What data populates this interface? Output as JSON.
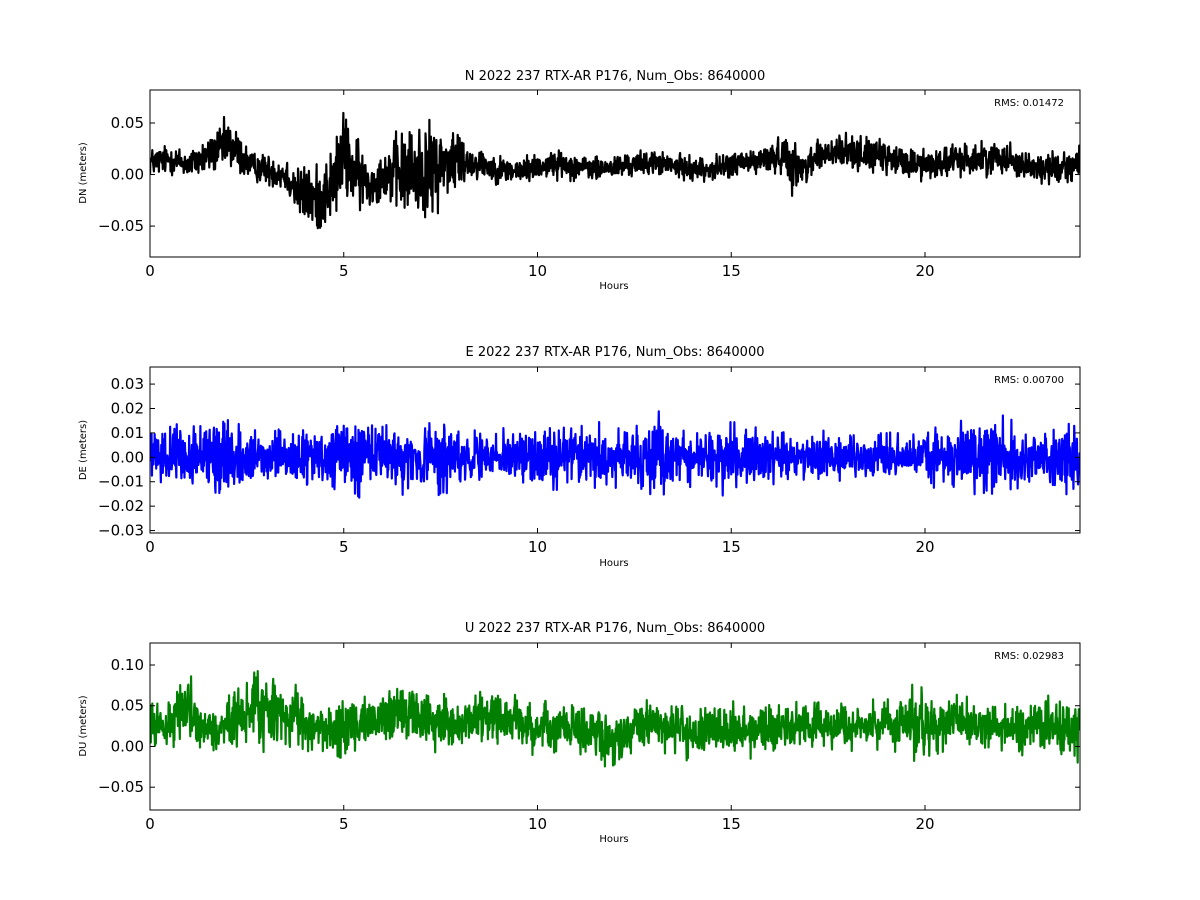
{
  "chart_data": [
    {
      "type": "line",
      "component": "N",
      "title": "N 2022 237 RTX-AR  P176, Num_Obs: 8640000",
      "xlabel": "Hours",
      "ylabel": "DN (meters)",
      "xlim": [
        0,
        24
      ],
      "ylim": [
        -0.08,
        0.082
      ],
      "xticks": [
        0,
        5,
        10,
        15,
        20
      ],
      "xtick_labels": [
        "0",
        "5",
        "10",
        "15",
        "20"
      ],
      "yticks": [
        0.05,
        0.0,
        -0.05
      ],
      "ytick_labels": [
        "0.05",
        "0.00",
        "−0.05"
      ],
      "annotation": "RMS:  0.01472",
      "annotation_color": "#0000ff",
      "grid": false,
      "color": "#000000",
      "series": [
        {
          "x": [
            0,
            0.5,
            1,
            1.5,
            1.8,
            2.0,
            2.3,
            2.6,
            3.0,
            3.5,
            3.9,
            4.3,
            4.7,
            5.0,
            5.3,
            5.7,
            6.0,
            6.3,
            6.6,
            7.0,
            7.2,
            7.5,
            7.9,
            8.2,
            8.6,
            9.0,
            9.5,
            10.0,
            10.5,
            11.0,
            11.5,
            12.0,
            12.5,
            13.0,
            13.5,
            14.0,
            14.5,
            15.0,
            15.5,
            16.0,
            16.4,
            16.6,
            16.8,
            17.2,
            17.6,
            18.0,
            18.5,
            19.0,
            19.5,
            20.0,
            20.5,
            21.0,
            21.5,
            22.0,
            22.5,
            23.0,
            23.5,
            24.0
          ],
          "y": [
            0.012,
            0.015,
            0.01,
            0.018,
            0.025,
            0.03,
            0.02,
            0.008,
            0.005,
            0.0,
            -0.02,
            -0.025,
            -0.01,
            0.02,
            0.0,
            -0.01,
            0.0,
            0.002,
            0.0,
            0.005,
            0.0,
            0.01,
            0.015,
            0.012,
            0.01,
            0.005,
            0.003,
            0.008,
            0.01,
            0.008,
            0.005,
            0.007,
            0.01,
            0.012,
            0.008,
            0.006,
            0.005,
            0.01,
            0.012,
            0.015,
            0.02,
            0.01,
            0.005,
            0.018,
            0.02,
            0.022,
            0.02,
            0.015,
            0.012,
            0.01,
            0.012,
            0.015,
            0.015,
            0.018,
            0.01,
            0.005,
            0.008,
            0.01
          ],
          "spread": [
            0.02,
            0.02,
            0.02,
            0.025,
            0.03,
            0.035,
            0.03,
            0.02,
            0.02,
            0.025,
            0.04,
            0.045,
            0.05,
            0.06,
            0.05,
            0.03,
            0.03,
            0.05,
            0.06,
            0.065,
            0.065,
            0.05,
            0.05,
            0.025,
            0.02,
            0.018,
            0.018,
            0.018,
            0.018,
            0.018,
            0.016,
            0.016,
            0.016,
            0.016,
            0.016,
            0.016,
            0.016,
            0.018,
            0.018,
            0.02,
            0.025,
            0.04,
            0.02,
            0.025,
            0.025,
            0.025,
            0.022,
            0.022,
            0.022,
            0.022,
            0.022,
            0.022,
            0.022,
            0.022,
            0.02,
            0.02,
            0.022,
            0.024
          ]
        }
      ]
    },
    {
      "type": "line",
      "component": "E",
      "title": "E 2022 237 RTX-AR  P176, Num_Obs: 8640000",
      "xlabel": "Hours",
      "ylabel": "DE (meters)",
      "xlim": [
        0,
        24
      ],
      "ylim": [
        -0.031,
        0.037
      ],
      "xticks": [
        0,
        5,
        10,
        15,
        20
      ],
      "xtick_labels": [
        "0",
        "5",
        "10",
        "15",
        "20"
      ],
      "yticks": [
        0.03,
        0.02,
        0.01,
        0.0,
        -0.01,
        -0.02,
        -0.03
      ],
      "ytick_labels": [
        "0.03",
        "0.02",
        "0.01",
        "0.00",
        "−0.01",
        "−0.02",
        "−0.03"
      ],
      "annotation": "RMS:  0.00700",
      "annotation_color": "#0000ff",
      "grid": false,
      "color": "#0000ff",
      "series": [
        {
          "x": [
            0,
            0.5,
            1,
            1.5,
            1.8,
            2.0,
            2.3,
            2.6,
            3.0,
            3.5,
            4.0,
            4.5,
            5.0,
            5.3,
            5.7,
            6.0,
            6.5,
            7.0,
            7.5,
            8.0,
            8.5,
            9.0,
            9.5,
            10.0,
            10.5,
            11.0,
            11.5,
            12.0,
            12.5,
            13.0,
            13.1,
            13.5,
            14.0,
            14.5,
            15.0,
            15.5,
            16.0,
            16.5,
            17.0,
            17.5,
            18.0,
            18.5,
            19.0,
            19.5,
            20.0,
            20.5,
            21.0,
            21.5,
            22.0,
            22.5,
            23.0,
            23.5,
            24.0
          ],
          "y": [
            0.0,
            0.001,
            0.0,
            0.001,
            0.002,
            0.001,
            0.0,
            -0.001,
            0.0,
            0.0,
            0.0,
            -0.001,
            0.0,
            0.0,
            0.001,
            0.0,
            0.0,
            -0.001,
            0.0,
            0.0,
            0.0,
            0.0,
            0.001,
            0.0,
            0.001,
            0.001,
            0.0,
            0.0,
            0.001,
            0.001,
            0.002,
            0.0,
            0.0,
            0.0,
            0.0,
            0.001,
            0.0,
            0.0,
            0.0,
            0.0,
            0.0,
            0.0,
            0.0,
            0.0,
            0.0,
            0.0,
            0.001,
            0.001,
            0.0,
            0.0,
            0.0,
            0.0,
            0.0
          ],
          "spread": [
            0.013,
            0.014,
            0.015,
            0.018,
            0.028,
            0.022,
            0.016,
            0.013,
            0.012,
            0.014,
            0.015,
            0.015,
            0.02,
            0.024,
            0.02,
            0.017,
            0.017,
            0.018,
            0.02,
            0.015,
            0.012,
            0.012,
            0.014,
            0.016,
            0.018,
            0.017,
            0.017,
            0.016,
            0.016,
            0.02,
            0.03,
            0.014,
            0.014,
            0.016,
            0.018,
            0.016,
            0.013,
            0.013,
            0.012,
            0.012,
            0.012,
            0.012,
            0.012,
            0.012,
            0.014,
            0.016,
            0.018,
            0.022,
            0.02,
            0.018,
            0.017,
            0.017,
            0.018
          ]
        }
      ]
    },
    {
      "type": "line",
      "component": "U",
      "title": "U 2022 237 RTX-AR  P176, Num_Obs: 8640000",
      "xlabel": "Hours",
      "ylabel": "DU (meters)",
      "xlim": [
        0,
        24
      ],
      "ylim": [
        -0.078,
        0.127
      ],
      "xticks": [
        0,
        5,
        10,
        15,
        20
      ],
      "xtick_labels": [
        "0",
        "5",
        "10",
        "15",
        "20"
      ],
      "yticks": [
        0.1,
        0.05,
        0.0,
        -0.05
      ],
      "ytick_labels": [
        "0.10",
        "0.05",
        "0.00",
        "−0.05"
      ],
      "annotation": "RMS:  0.02983",
      "annotation_color": "#0000ff",
      "grid": false,
      "color": "#007f00",
      "series": [
        {
          "x": [
            0,
            0.5,
            0.9,
            1.3,
            1.8,
            2.3,
            2.8,
            3.0,
            3.5,
            4.0,
            4.5,
            5.0,
            5.5,
            6.0,
            6.5,
            7.0,
            7.5,
            8.0,
            8.5,
            9.0,
            9.5,
            10.0,
            10.5,
            11.0,
            11.5,
            11.8,
            12.2,
            12.6,
            13.0,
            13.5,
            14.0,
            14.5,
            15.0,
            15.5,
            16.0,
            16.5,
            17.0,
            17.5,
            18.0,
            18.5,
            19.0,
            19.5,
            19.8,
            20.1,
            20.5,
            21.0,
            21.5,
            22.0,
            22.5,
            23.0,
            23.5,
            24.0
          ],
          "y": [
            0.025,
            0.03,
            0.04,
            0.03,
            0.02,
            0.035,
            0.05,
            0.045,
            0.04,
            0.025,
            0.02,
            0.02,
            0.03,
            0.035,
            0.04,
            0.035,
            0.03,
            0.025,
            0.035,
            0.035,
            0.03,
            0.02,
            0.025,
            0.025,
            0.015,
            0.0,
            0.01,
            0.025,
            0.03,
            0.02,
            0.015,
            0.02,
            0.02,
            0.02,
            0.025,
            0.025,
            0.025,
            0.025,
            0.02,
            0.025,
            0.03,
            0.035,
            0.03,
            0.02,
            0.03,
            0.03,
            0.025,
            0.025,
            0.02,
            0.03,
            0.025,
            0.015
          ],
          "spread": [
            0.04,
            0.045,
            0.06,
            0.05,
            0.04,
            0.05,
            0.06,
            0.065,
            0.055,
            0.045,
            0.04,
            0.05,
            0.045,
            0.045,
            0.05,
            0.045,
            0.045,
            0.04,
            0.045,
            0.04,
            0.04,
            0.04,
            0.04,
            0.04,
            0.045,
            0.05,
            0.04,
            0.04,
            0.04,
            0.04,
            0.04,
            0.04,
            0.04,
            0.04,
            0.04,
            0.038,
            0.038,
            0.035,
            0.035,
            0.035,
            0.04,
            0.05,
            0.08,
            0.06,
            0.04,
            0.04,
            0.038,
            0.038,
            0.038,
            0.04,
            0.042,
            0.045
          ]
        }
      ]
    }
  ]
}
